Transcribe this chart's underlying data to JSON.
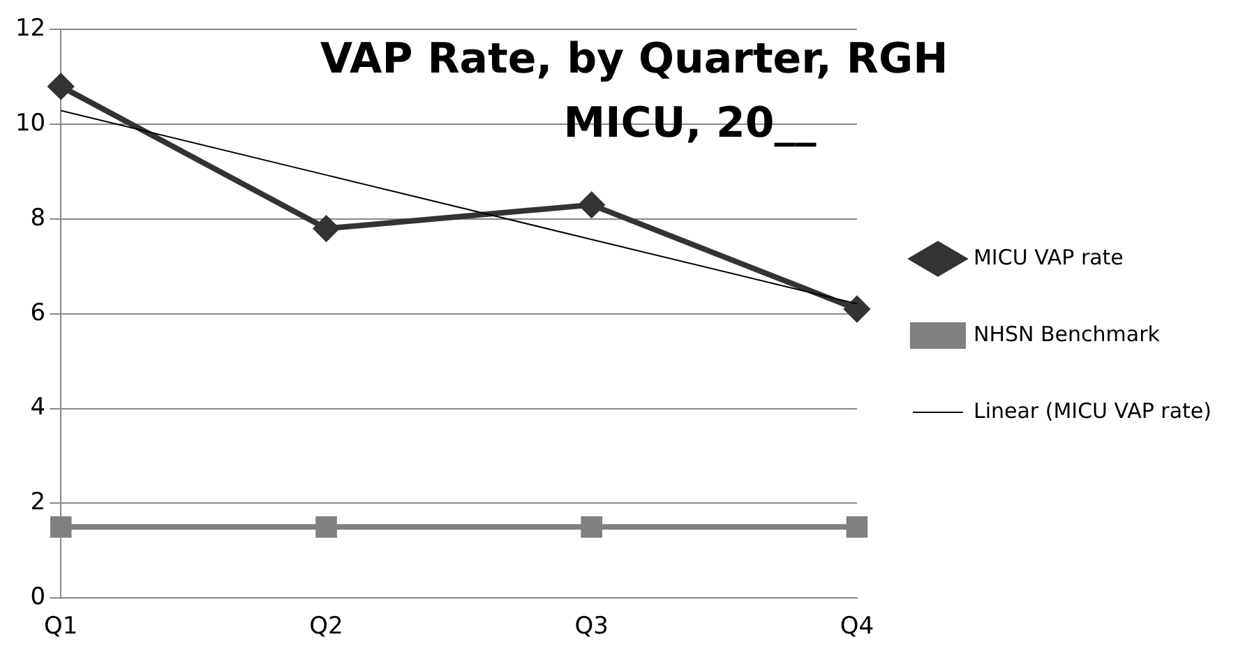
{
  "chart_data": {
    "type": "line",
    "title": "VAP Rate, by Quarter, RGH MICU, 20__",
    "categories": [
      "Q1",
      "Q2",
      "Q3",
      "Q4"
    ],
    "series": [
      {
        "name": "MICU VAP rate",
        "color": "#333333",
        "values": [
          10.8,
          7.8,
          8.3,
          6.1
        ],
        "marker": "diamond"
      },
      {
        "name": "NHSN Benchmark",
        "color": "#808080",
        "values": [
          1.5,
          1.5,
          1.5,
          1.5
        ],
        "marker": "square"
      },
      {
        "name": "Linear (MICU VAP rate)",
        "color": "#000000",
        "values": [
          10.29,
          8.93,
          7.57,
          6.21
        ],
        "marker": "none"
      }
    ],
    "ylim": [
      0,
      12
    ],
    "yticks": [
      0,
      2,
      4,
      6,
      8,
      10,
      12
    ],
    "grid": "y",
    "legend": "right"
  }
}
